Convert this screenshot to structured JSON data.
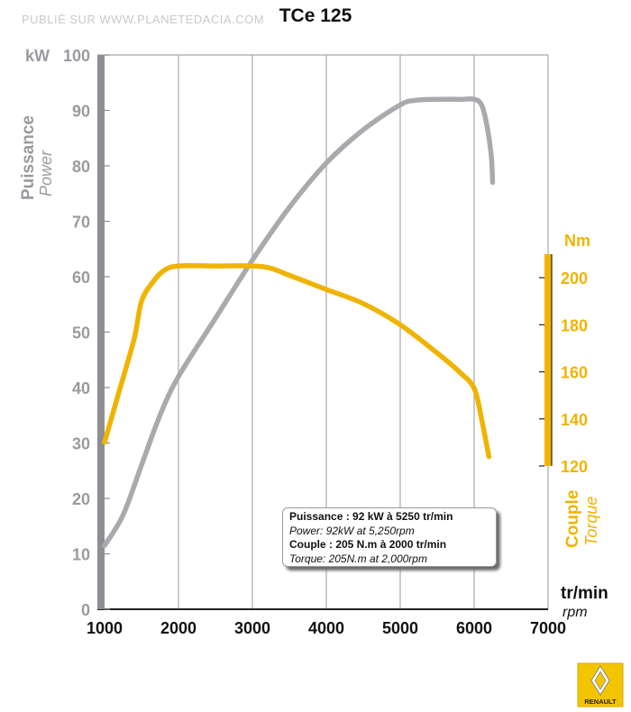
{
  "watermark": "PUBLIÉ SUR WWW.PLANETEDACIA.COM",
  "title": "TCe 125",
  "chart_data": {
    "type": "line",
    "title": "TCe 125",
    "xlabel": "tr/min",
    "xlabel_en": "rpm",
    "xlim": [
      1000,
      7000
    ],
    "x_ticks": [
      1000,
      2000,
      3000,
      4000,
      5000,
      6000,
      7000
    ],
    "y_left": {
      "unit": "kW",
      "label": "Puissance",
      "label_en": "Power",
      "ylim": [
        0,
        100
      ],
      "ticks": [
        0,
        10,
        20,
        30,
        40,
        50,
        60,
        70,
        80,
        90,
        100
      ]
    },
    "y_right": {
      "unit": "Nm",
      "label": "Couple",
      "label_en": "Torque",
      "ylim": [
        120,
        210
      ],
      "ticks": [
        120,
        140,
        160,
        180,
        200
      ]
    },
    "grid": "vertical",
    "series": [
      {
        "name": "Puissance / Power",
        "axis": "left",
        "color": "#a9a9ae",
        "x": [
          1000,
          1250,
          1500,
          1750,
          2000,
          2500,
          3000,
          3500,
          4000,
          4500,
          5000,
          5200,
          5500,
          5800,
          6000,
          6100,
          6170,
          6230,
          6250
        ],
        "y": [
          11.5,
          17,
          26,
          35,
          42,
          52.5,
          63,
          72.5,
          80.5,
          86.5,
          91,
          91.8,
          92,
          92,
          92,
          91,
          87.5,
          82,
          77
        ]
      },
      {
        "name": "Couple / Torque",
        "axis": "right",
        "color": "#f0b400",
        "x": [
          1000,
          1200,
          1400,
          1500,
          1650,
          1800,
          2000,
          2500,
          3000,
          3250,
          3500,
          4000,
          4500,
          5000,
          5500,
          5800,
          6000,
          6100,
          6200
        ],
        "y": [
          130,
          152,
          174,
          190,
          198,
          203,
          205,
          205,
          205,
          204,
          201,
          195,
          189,
          180,
          168,
          160,
          153,
          140,
          124
        ]
      }
    ],
    "annotations": {
      "line1": "Puissance : 92 kW à 5250 tr/min",
      "line2": "Power: 92kW at 5,250rpm",
      "line3": "Couple : 205 N.m à 2000 tr/min",
      "line4": "Torque: 205N.m at 2,000rpm"
    }
  },
  "logo": {
    "brand": "RENAULT",
    "icon": "renault-diamond-icon"
  },
  "colors": {
    "power": "#a9a9ae",
    "torque": "#f0b400",
    "axis_text": "#9a9aa0"
  }
}
